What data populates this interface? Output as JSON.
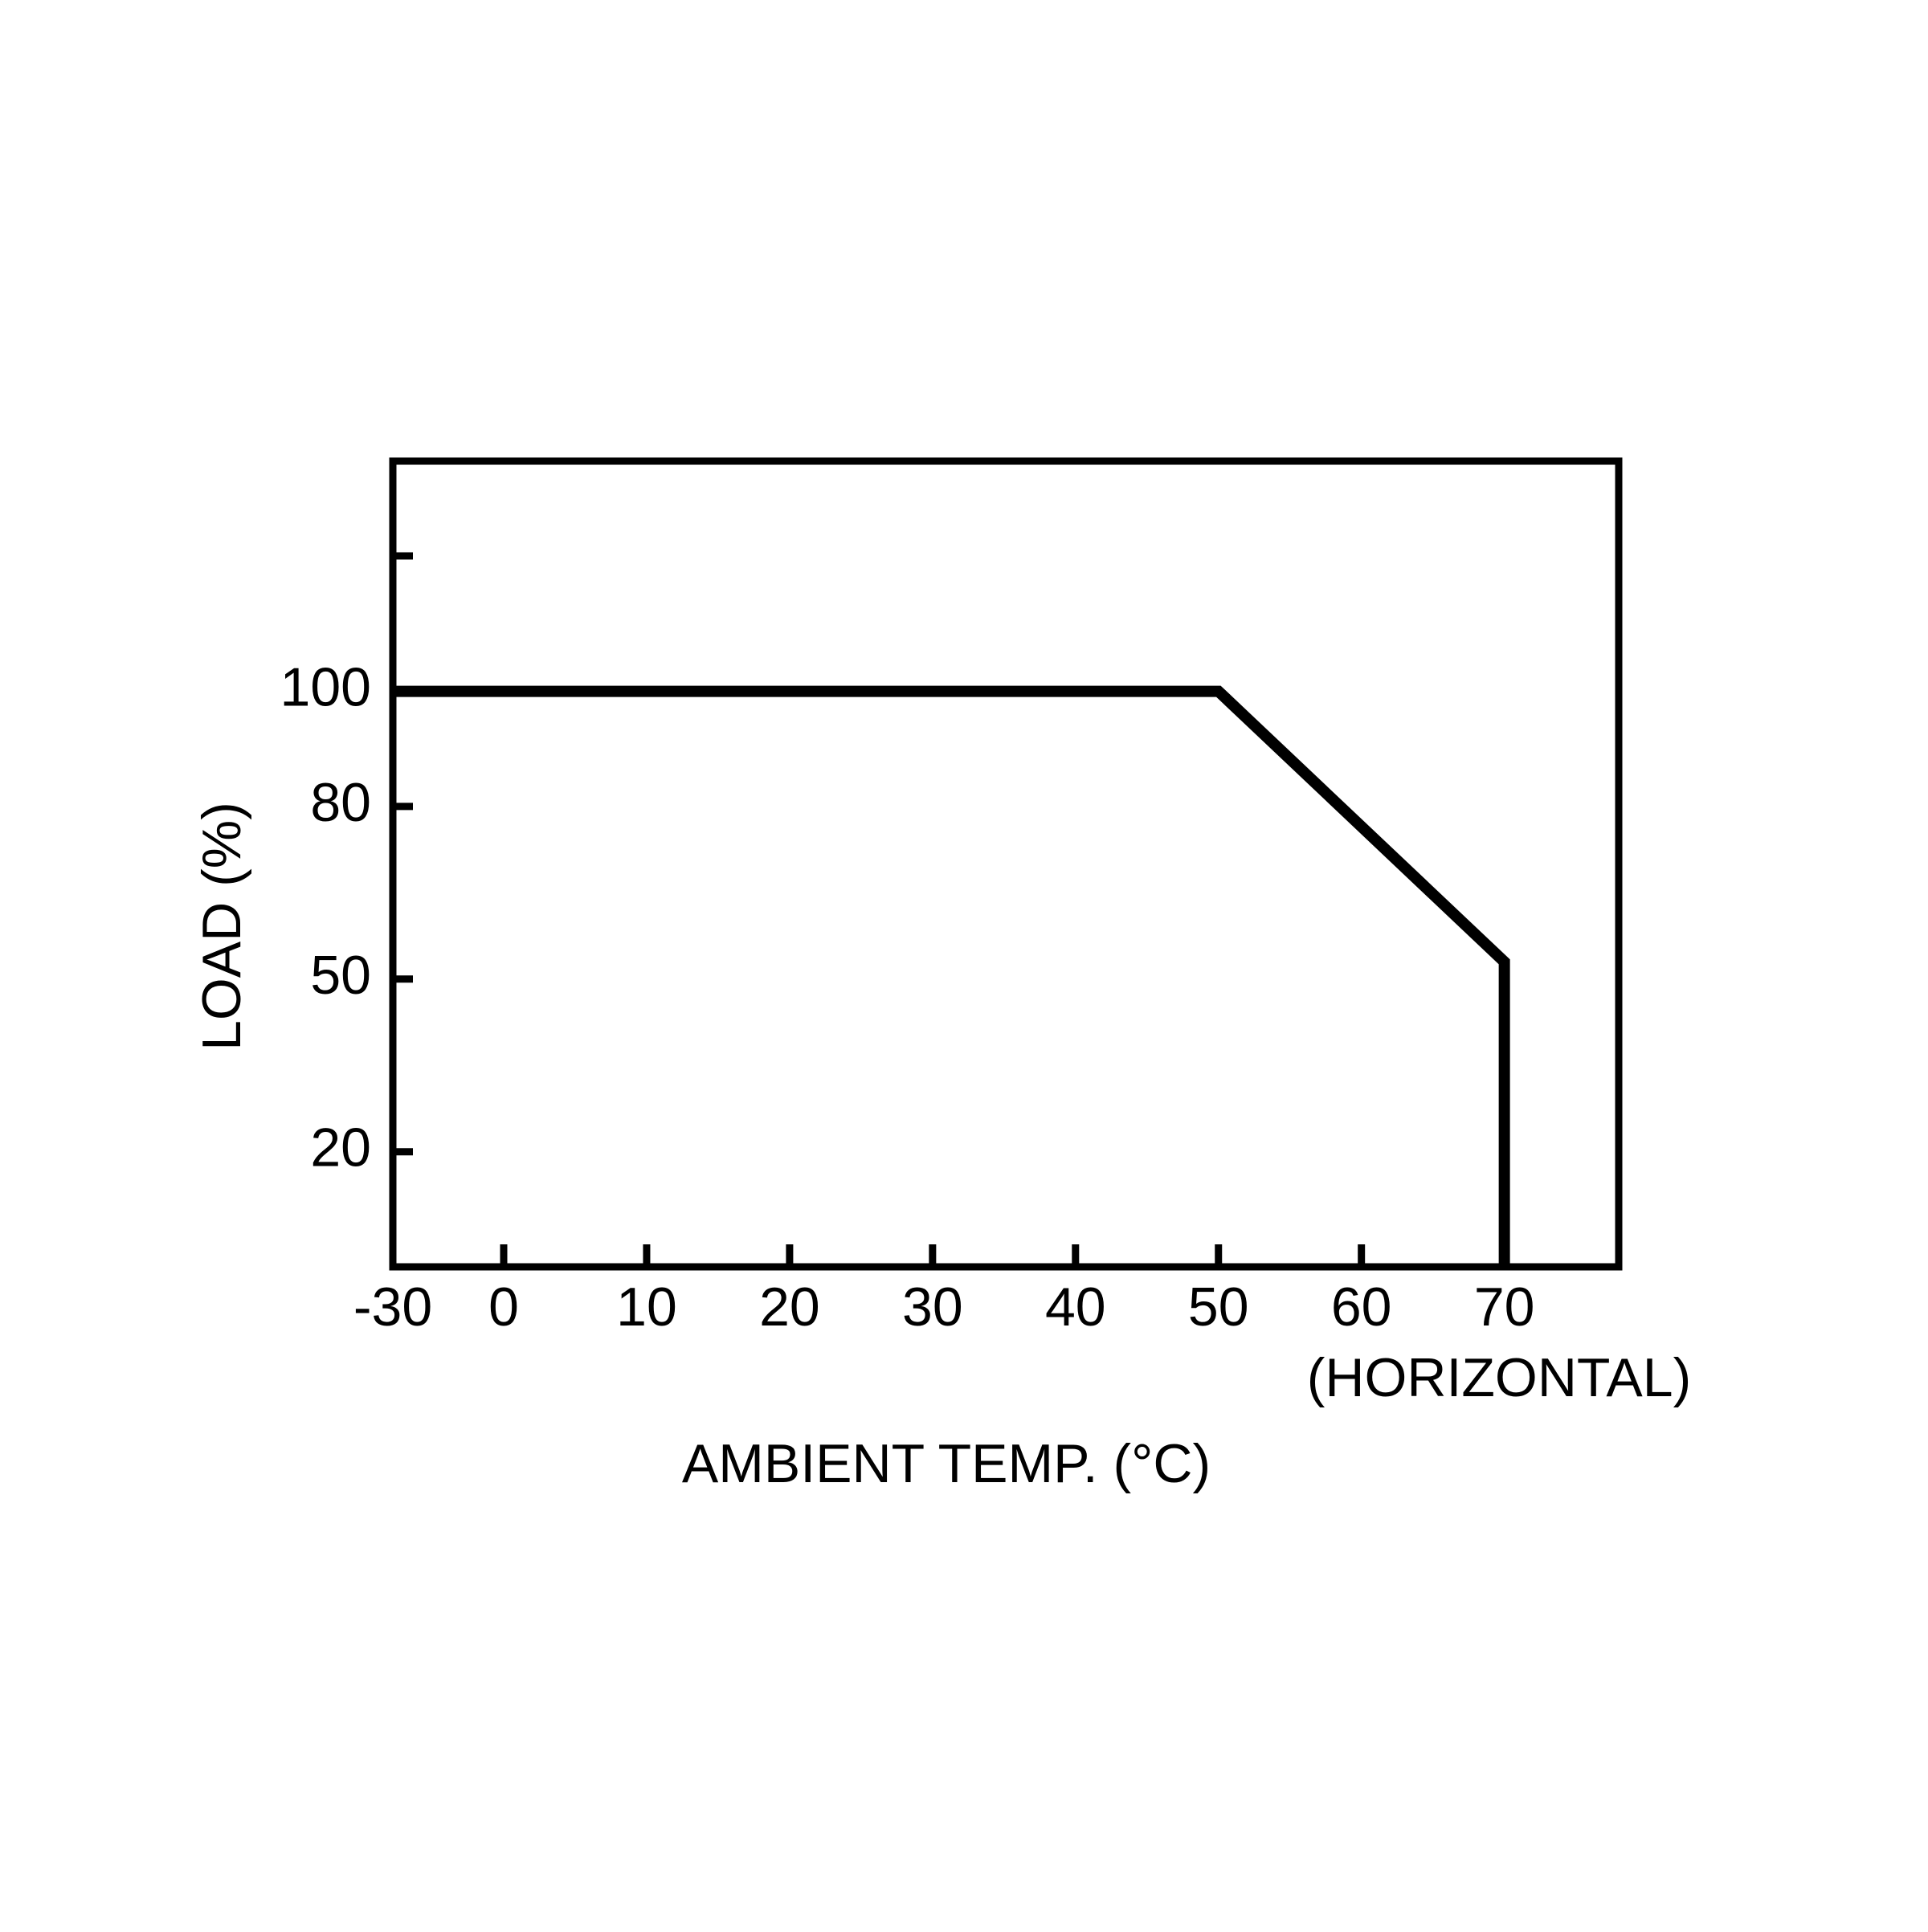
{
  "chart_data": {
    "type": "line",
    "x_label": "AMBIENT TEMP. (°C)",
    "x_note": "(HORIZONTAL)",
    "y_label": "LOAD (%)",
    "x": [
      -30,
      50,
      70,
      70
    ],
    "series": [
      {
        "color": "#000000",
        "values": [
          100,
          100,
          53,
          0
        ]
      }
    ],
    "xlim": [
      -30,
      78
    ],
    "xticks": [
      -30,
      0,
      10,
      20,
      30,
      40,
      50,
      60,
      70
    ],
    "ylim": [
      0,
      140
    ],
    "yticks": [
      20,
      50,
      80,
      100
    ],
    "grid": false
  }
}
